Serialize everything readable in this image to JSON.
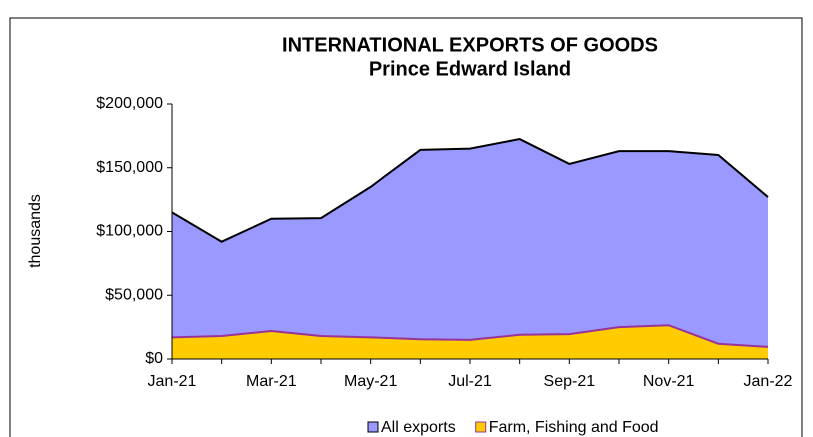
{
  "chart_data": {
    "type": "area",
    "title": "INTERNATIONAL EXPORTS OF GOODS",
    "subtitle": "Prince Edward Island",
    "y_label": "thousands",
    "categories": [
      "Jan-21",
      null,
      "Mar-21",
      null,
      "May-21",
      null,
      "Jul-21",
      null,
      "Sep-21",
      null,
      "Nov-21",
      null,
      "Jan-22"
    ],
    "series": [
      {
        "name": "All exports",
        "color": "#9999ff",
        "line_color": "#000000",
        "values": [
          115000,
          92000,
          110000,
          110500,
          135000,
          164000,
          165000,
          172500,
          153000,
          163000,
          163000,
          160000,
          127000
        ]
      },
      {
        "name": "Farm, Fishing and Food",
        "color": "#ffcc00",
        "line_color": "#993399",
        "values": [
          17000,
          18000,
          22000,
          18000,
          17000,
          15500,
          15000,
          19000,
          19500,
          25000,
          26500,
          12000,
          9500
        ]
      }
    ],
    "ylim": [
      0,
      200000
    ],
    "yticks": [
      {
        "value": 0,
        "label": "$0"
      },
      {
        "value": 50000,
        "label": "$50,000"
      },
      {
        "value": 100000,
        "label": "$100,000"
      },
      {
        "value": 150000,
        "label": "$150,000"
      },
      {
        "value": 200000,
        "label": "$200,000"
      }
    ],
    "grid": false,
    "legend": "bottom"
  }
}
